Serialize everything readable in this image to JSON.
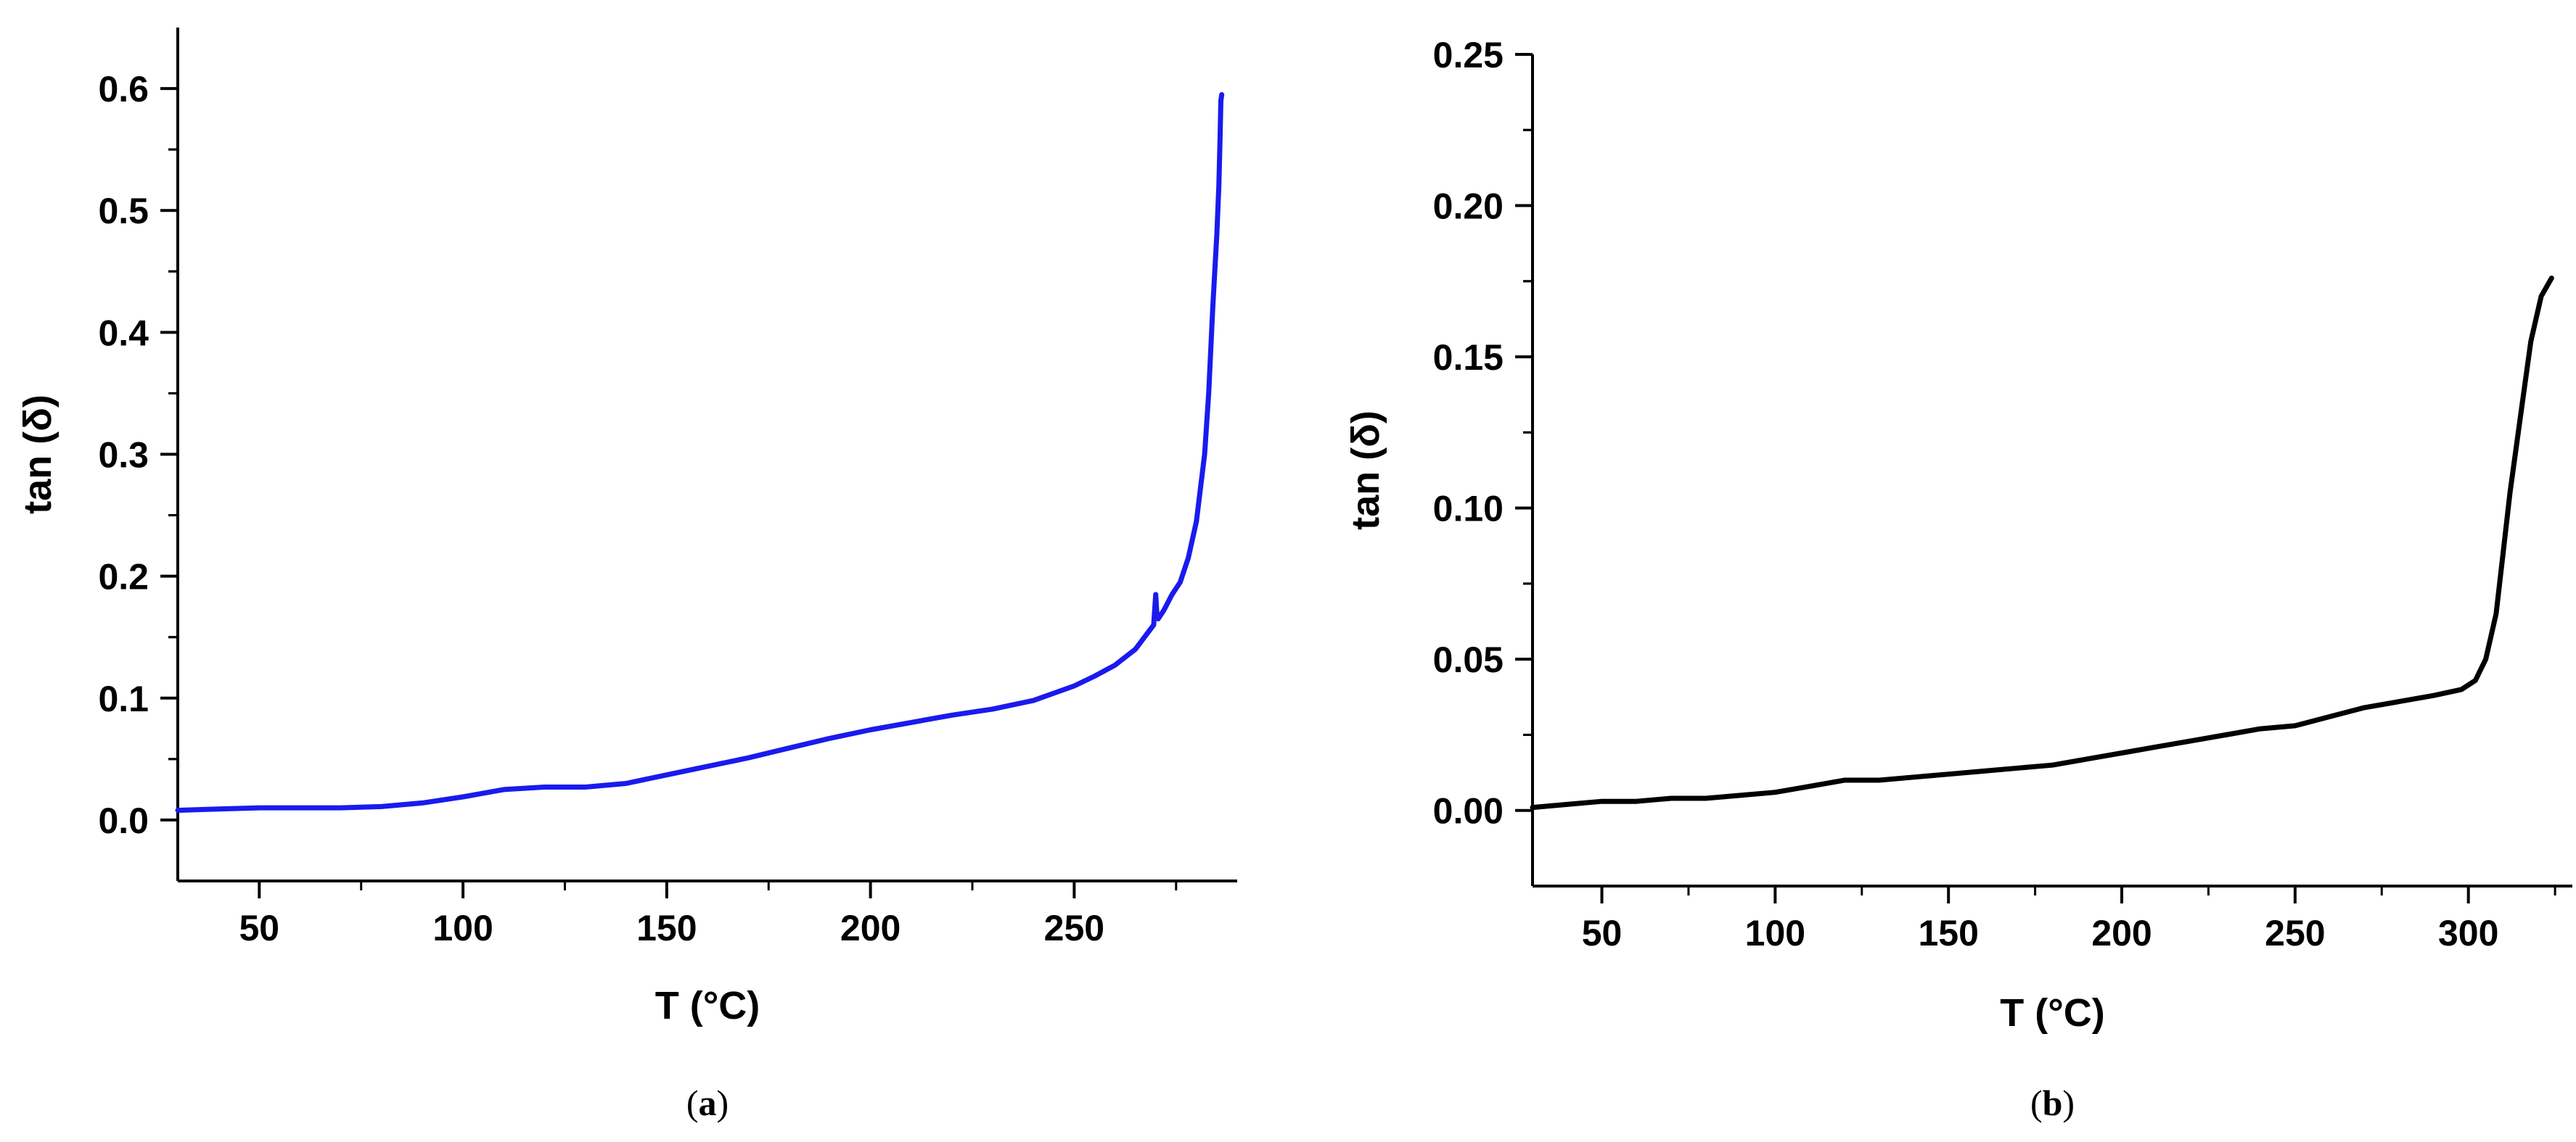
{
  "chart_data": [
    {
      "type": "line",
      "panel": "(a)",
      "panel_letter": "a",
      "xlabel": "T (°C)",
      "ylabel": "tan (δ)",
      "xlim": [
        30,
        290
      ],
      "ylim": [
        -0.05,
        0.65
      ],
      "xticks": [
        50,
        100,
        150,
        200,
        250
      ],
      "xtick_labels": [
        "50",
        "100",
        "150",
        "200",
        "250"
      ],
      "yticks": [
        0.0,
        0.1,
        0.2,
        0.3,
        0.4,
        0.5,
        0.6
      ],
      "ytick_labels": [
        "0.0",
        "0.1",
        "0.2",
        "0.3",
        "0.4",
        "0.5",
        "0.6"
      ],
      "grid": false,
      "color": "#1a1aee",
      "series": [
        {
          "x": [
            30,
            40,
            50,
            60,
            70,
            80,
            90,
            100,
            105,
            110,
            120,
            130,
            140,
            150,
            160,
            170,
            180,
            190,
            200,
            210,
            220,
            230,
            240,
            250,
            255,
            260,
            265,
            269.5,
            270,
            270.3,
            270.6,
            272,
            274,
            276,
            278,
            280,
            282,
            283,
            284,
            285,
            285.5,
            285.8,
            286,
            286.2
          ],
          "y": [
            0.008,
            0.009,
            0.01,
            0.01,
            0.01,
            0.011,
            0.014,
            0.019,
            0.022,
            0.025,
            0.027,
            0.027,
            0.03,
            0.037,
            0.044,
            0.051,
            0.059,
            0.067,
            0.074,
            0.08,
            0.086,
            0.091,
            0.098,
            0.11,
            0.118,
            0.127,
            0.14,
            0.16,
            0.185,
            0.168,
            0.165,
            0.172,
            0.185,
            0.195,
            0.215,
            0.245,
            0.3,
            0.35,
            0.42,
            0.48,
            0.52,
            0.56,
            0.59,
            0.595
          ]
        }
      ]
    },
    {
      "type": "line",
      "panel": "(b)",
      "panel_letter": "b",
      "xlabel": "T (°C)",
      "ylabel": "tan (δ)",
      "xlim": [
        30,
        330
      ],
      "ylim": [
        -0.025,
        0.25
      ],
      "xticks": [
        50,
        100,
        150,
        200,
        250,
        300
      ],
      "xtick_labels": [
        "50",
        "100",
        "150",
        "200",
        "250",
        "300"
      ],
      "yticks": [
        0.0,
        0.05,
        0.1,
        0.15,
        0.2,
        0.25
      ],
      "ytick_labels": [
        "0.00",
        "0.05",
        "0.10",
        "0.15",
        "0.20",
        "0.25"
      ],
      "grid": false,
      "color": "#000000",
      "series": [
        {
          "x": [
            30,
            40,
            50,
            60,
            70,
            80,
            90,
            100,
            110,
            120,
            130,
            140,
            150,
            160,
            170,
            180,
            190,
            200,
            210,
            220,
            230,
            240,
            250,
            260,
            270,
            280,
            290,
            298,
            302,
            305,
            308,
            310,
            312,
            315,
            318,
            321,
            324
          ],
          "y": [
            0.001,
            0.002,
            0.003,
            0.003,
            0.004,
            0.004,
            0.005,
            0.006,
            0.008,
            0.01,
            0.01,
            0.011,
            0.012,
            0.013,
            0.014,
            0.015,
            0.017,
            0.019,
            0.021,
            0.023,
            0.025,
            0.027,
            0.028,
            0.031,
            0.034,
            0.036,
            0.038,
            0.04,
            0.043,
            0.05,
            0.065,
            0.085,
            0.105,
            0.13,
            0.155,
            0.17,
            0.176
          ]
        }
      ]
    }
  ]
}
